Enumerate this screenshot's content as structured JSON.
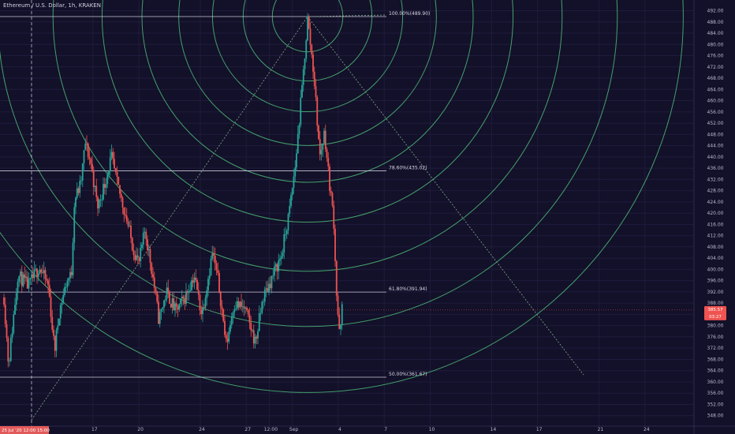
{
  "title": "Ethereum / U.S. Dollar, 1h, KRAKEN",
  "colors": {
    "background": "#131029",
    "grid": "#1f1c3d",
    "arc": "#4cbb78",
    "level": "#c8c8d8",
    "trend": "#7fae8e",
    "up": "#26a69a",
    "down": "#ef5350",
    "price_badge": "#ef5350",
    "time_badge": "#e35a5a"
  },
  "chart_data": {
    "type": "candlestick",
    "symbol": "Ethereum / U.S. Dollar",
    "interval": "1h",
    "exchange": "KRAKEN",
    "ylim": [
      346,
      494
    ],
    "y_ticks": [
      "348.00",
      "352.00",
      "356.00",
      "360.00",
      "364.00",
      "368.00",
      "372.00",
      "376.00",
      "380.00",
      "384.00",
      "388.00",
      "392.00",
      "396.00",
      "400.00",
      "404.00",
      "408.00",
      "412.00",
      "416.00",
      "420.00",
      "424.00",
      "428.00",
      "432.00",
      "436.00",
      "440.00",
      "444.00",
      "448.00",
      "452.00",
      "456.00",
      "460.00",
      "464.00",
      "468.00",
      "472.00",
      "476.00",
      "480.00",
      "484.00",
      "488.00",
      "492.00"
    ],
    "x_ticks": [
      {
        "label": "13",
        "d": 0
      },
      {
        "label": "17",
        "d": 4
      },
      {
        "label": "20",
        "d": 7
      },
      {
        "label": "24",
        "d": 11
      },
      {
        "label": "27",
        "d": 14
      },
      {
        "label": "12:00",
        "d": 15.5
      },
      {
        "label": "Sep",
        "d": 17
      },
      {
        "label": "4",
        "d": 20
      },
      {
        "label": "7",
        "d": 23
      },
      {
        "label": "10",
        "d": 26
      },
      {
        "label": "14",
        "d": 30
      },
      {
        "label": "17",
        "d": 33
      },
      {
        "label": "21",
        "d": 37
      },
      {
        "label": "24",
        "d": 40
      }
    ],
    "cursor_time_label": "25 Jul '20 12:00",
    "cursor_time_label_end": "15:00",
    "current_price": "385.57",
    "countdown": "03:27",
    "fib_levels": [
      {
        "label": "100.00%(489.90)",
        "price": 489.9
      },
      {
        "label": "78.60%(435.02)",
        "price": 435.02
      },
      {
        "label": "61.80%(391.94)",
        "price": 391.94
      },
      {
        "label": "50.00%(361.67)",
        "price": 361.67
      }
    ],
    "anchor_points": [
      {
        "d": 0,
        "price": 346.5
      },
      {
        "d": 18,
        "price": 489.9
      },
      {
        "d": 36,
        "price": 362.5
      }
    ],
    "fan_center": {
      "d": 18,
      "price": 489.9
    },
    "arc_radii_days": [
      2.3,
      4.2,
      6.2,
      8.4,
      10.8,
      13.4,
      16.6,
      20.2,
      24.5
    ],
    "price_waypoints": [
      {
        "d": -1.8,
        "p": 390
      },
      {
        "d": -1.5,
        "p": 366
      },
      {
        "d": -0.9,
        "p": 398
      },
      {
        "d": -0.2,
        "p": 394
      },
      {
        "d": 0.5,
        "p": 401
      },
      {
        "d": 1.1,
        "p": 394
      },
      {
        "d": 1.5,
        "p": 371
      },
      {
        "d": 1.8,
        "p": 385
      },
      {
        "d": 2.3,
        "p": 396
      },
      {
        "d": 2.6,
        "p": 398
      },
      {
        "d": 2.8,
        "p": 425
      },
      {
        "d": 3.2,
        "p": 430
      },
      {
        "d": 3.5,
        "p": 445
      },
      {
        "d": 3.9,
        "p": 437
      },
      {
        "d": 4.3,
        "p": 422
      },
      {
        "d": 4.8,
        "p": 431
      },
      {
        "d": 5.2,
        "p": 440
      },
      {
        "d": 5.6,
        "p": 430
      },
      {
        "d": 6.2,
        "p": 418
      },
      {
        "d": 6.6,
        "p": 408
      },
      {
        "d": 7.0,
        "p": 402
      },
      {
        "d": 7.4,
        "p": 414
      },
      {
        "d": 7.9,
        "p": 398
      },
      {
        "d": 8.3,
        "p": 382
      },
      {
        "d": 8.8,
        "p": 392
      },
      {
        "d": 9.4,
        "p": 385
      },
      {
        "d": 10.0,
        "p": 390
      },
      {
        "d": 10.6,
        "p": 398
      },
      {
        "d": 11.1,
        "p": 384
      },
      {
        "d": 11.8,
        "p": 406
      },
      {
        "d": 12.2,
        "p": 395
      },
      {
        "d": 12.7,
        "p": 373
      },
      {
        "d": 13.2,
        "p": 388
      },
      {
        "d": 13.9,
        "p": 386
      },
      {
        "d": 14.6,
        "p": 374
      },
      {
        "d": 15.1,
        "p": 390
      },
      {
        "d": 15.6,
        "p": 396
      },
      {
        "d": 16.3,
        "p": 405
      },
      {
        "d": 16.8,
        "p": 420
      },
      {
        "d": 17.2,
        "p": 437
      },
      {
        "d": 17.7,
        "p": 468
      },
      {
        "d": 18.0,
        "p": 489
      },
      {
        "d": 18.4,
        "p": 470
      },
      {
        "d": 18.8,
        "p": 440
      },
      {
        "d": 19.1,
        "p": 449
      },
      {
        "d": 19.4,
        "p": 432
      },
      {
        "d": 19.7,
        "p": 418
      },
      {
        "d": 19.9,
        "p": 390
      },
      {
        "d": 20.1,
        "p": 375
      },
      {
        "d": 20.25,
        "p": 386
      }
    ]
  }
}
